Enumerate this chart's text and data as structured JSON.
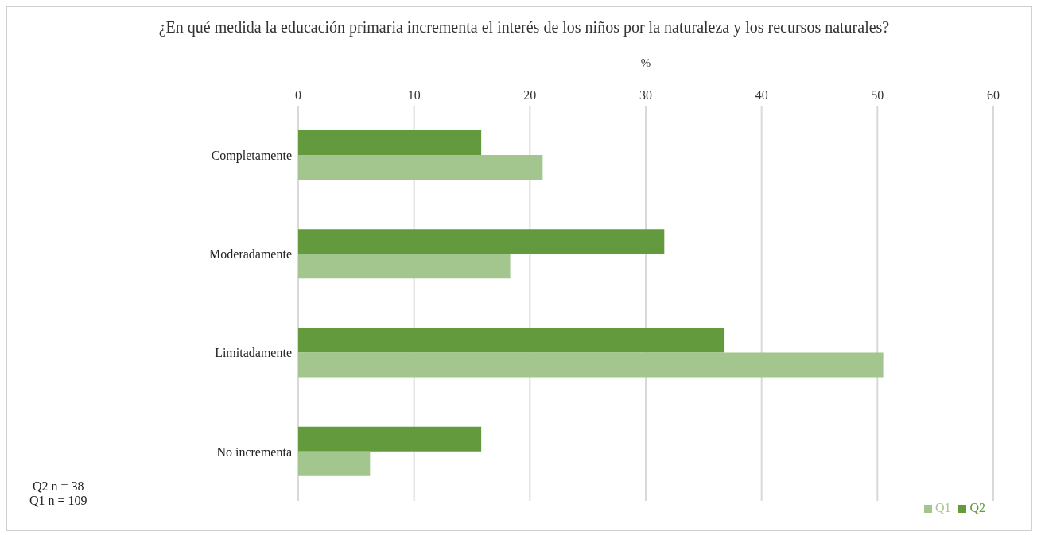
{
  "chart_data": {
    "type": "bar",
    "orientation": "horizontal",
    "title": "¿En qué medida la educación primaria incrementa el interés de los niños por la naturaleza y los recursos naturales?",
    "xlabel": "%",
    "categories": [
      "Completamente",
      "Moderadamente",
      "Limitadamente",
      "No incrementa"
    ],
    "series": [
      {
        "name": "Q2",
        "color": "#629a3d",
        "values": [
          15.8,
          31.6,
          36.8,
          15.8
        ]
      },
      {
        "name": "Q1",
        "color": "#a2c68e",
        "values": [
          21.1,
          18.3,
          50.5,
          6.2
        ]
      }
    ],
    "xlim": [
      0,
      60
    ],
    "xticks": [
      0,
      10,
      20,
      30,
      40,
      50,
      60
    ],
    "grid": "x",
    "legend": "bottom right",
    "annotations": [
      "Q2 n = 38",
      "Q1 n = 109"
    ]
  }
}
